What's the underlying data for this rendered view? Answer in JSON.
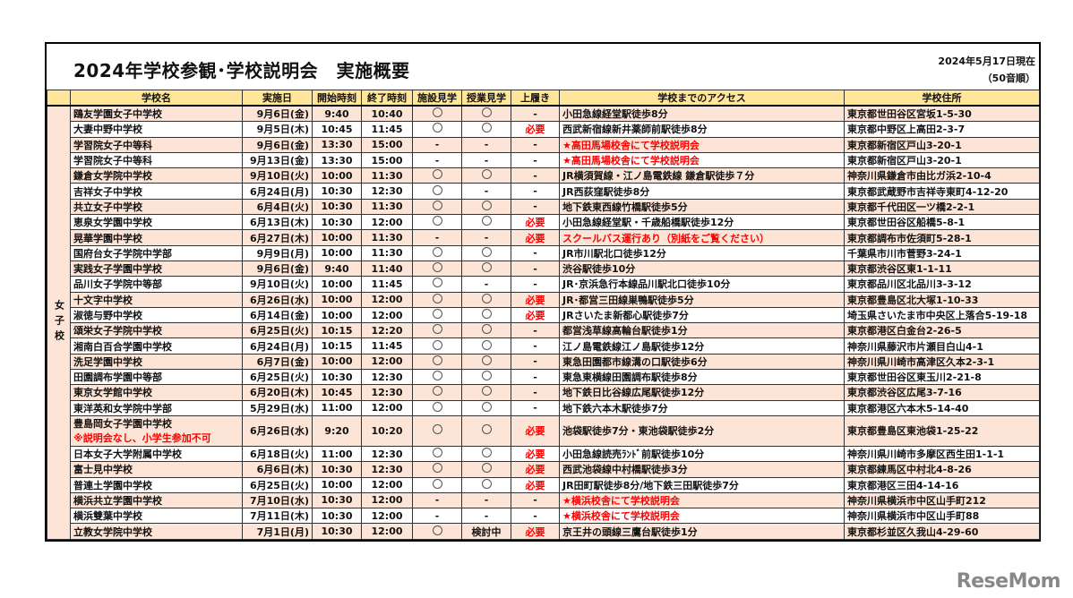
{
  "header": {
    "title": "2024年学校参観･学校説明会　実施概要",
    "as_of": "2024年5月17日現在",
    "order_note": "（50音順）"
  },
  "columns": [
    "学校名",
    "実施日",
    "開始時刻",
    "終了時刻",
    "施設見学",
    "授業見学",
    "上履き",
    "学校までのアクセス",
    "学校住所"
  ],
  "group_label": "女子校",
  "symbols": {
    "yes": "○",
    "no": "-"
  },
  "colors": {
    "header_bg": "#FFE699",
    "row_pink": "#FCE4D6",
    "alert_red": "#FF0000"
  },
  "rows": [
    {
      "name": "鴎友学園女子中学校",
      "date": "9月6日(金)",
      "start": "9:40",
      "end": "10:40",
      "facility": "○",
      "class": "○",
      "shoes": "-",
      "access": "小田急線経堂駅徒歩8分",
      "address": "東京都世田谷区宮坂1-5-30"
    },
    {
      "name": "大妻中野中学校",
      "date": "9月5日(木)",
      "start": "10:45",
      "end": "11:45",
      "facility": "○",
      "class": "○",
      "shoes": "必要",
      "access": "西武新宿線新井薬師前駅徒歩8分",
      "address": "東京都中野区上高田2-3-7"
    },
    {
      "name": "学習院女子中等科",
      "date": "9月6日(金)",
      "start": "13:30",
      "end": "15:00",
      "facility": "-",
      "class": "-",
      "shoes": "-",
      "access": "★高田馬場校舎にて学校説明会",
      "access_red": true,
      "address": "東京都新宿区戸山3-20-1"
    },
    {
      "name": "学習院女子中等科",
      "date": "9月13日(金)",
      "start": "13:30",
      "end": "15:00",
      "facility": "-",
      "class": "-",
      "shoes": "-",
      "access": "★高田馬場校舎にて学校説明会",
      "access_red": true,
      "address": "東京都新宿区戸山3-20-1"
    },
    {
      "name": "鎌倉女学院中学校",
      "date": "9月10日(火)",
      "start": "10:00",
      "end": "11:30",
      "facility": "○",
      "class": "○",
      "shoes": "-",
      "access": "JR横須賀線・江ノ島電鉄線 鎌倉駅徒歩７分",
      "address": "神奈川県鎌倉市由比ガ浜2-10-4"
    },
    {
      "name": "吉祥女子中学校",
      "date": "6月24日(月)",
      "start": "10:30",
      "end": "12:30",
      "facility": "○",
      "class": "-",
      "shoes": "-",
      "access": "JR西荻窪駅徒歩8分",
      "address": "東京都武蔵野市吉祥寺東町4-12-20"
    },
    {
      "name": "共立女子中学校",
      "date": "6月4日(火)",
      "start": "10:30",
      "end": "11:30",
      "facility": "○",
      "class": "○",
      "shoes": "-",
      "access": "地下鉄東西線竹橋駅徒歩5分",
      "address": "東京都千代田区一ツ橋2-2-1"
    },
    {
      "name": "恵泉女学園中学校",
      "date": "6月13日(木)",
      "start": "10:30",
      "end": "12:00",
      "facility": "○",
      "class": "○",
      "shoes": "必要",
      "access": "小田急線経堂駅・千歳船橋駅徒歩12分",
      "address": "東京都世田谷区船橋5-8-1"
    },
    {
      "name": "晃華学園中学校",
      "date": "6月27日(木)",
      "start": "10:00",
      "end": "11:30",
      "facility": "-",
      "class": "-",
      "shoes": "必要",
      "access": "スクールバス運行あり（別紙をご覧ください）",
      "access_red": true,
      "address": "東京都調布市佐須町5-28-1"
    },
    {
      "name": "国府台女子学院中学部",
      "date": "9月9日(月)",
      "start": "10:00",
      "end": "11:30",
      "facility": "○",
      "class": "○",
      "shoes": "-",
      "access": "JR市川駅北口徒歩12分",
      "address": "千葉県市川市菅野3-24-1"
    },
    {
      "name": "実践女子学園中学校",
      "date": "9月6日(金)",
      "start": "9:40",
      "end": "11:40",
      "facility": "○",
      "class": "○",
      "shoes": "-",
      "access": "渋谷駅徒歩10分",
      "address": "東京都渋谷区東1-1-11"
    },
    {
      "name": "品川女子学院中等部",
      "date": "9月10日(火)",
      "start": "10:00",
      "end": "11:45",
      "facility": "○",
      "class": "-",
      "shoes": "-",
      "access": "JR･京浜急行本線品川駅北口徒歩10分",
      "address": "東京都品川区北品川3-3-12"
    },
    {
      "name": "十文字中学校",
      "date": "6月26日(水)",
      "start": "10:00",
      "end": "12:00",
      "facility": "○",
      "class": "○",
      "shoes": "必要",
      "access": "JR･都営三田線巣鴨駅徒歩5分",
      "address": "東京都豊島区北大塚1-10-33"
    },
    {
      "name": "淑徳与野中学校",
      "date": "6月14日(金)",
      "start": "10:00",
      "end": "12:00",
      "facility": "○",
      "class": "○",
      "shoes": "必要",
      "access": "JRさいたま新都心駅徒歩7分",
      "address": "埼玉県さいたま市中央区上落合5-19-18"
    },
    {
      "name": "頌栄女子学院中学校",
      "date": "6月25日(火)",
      "start": "10:15",
      "end": "12:20",
      "facility": "○",
      "class": "○",
      "shoes": "-",
      "access": "都営浅草線高輪台駅徒歩1分",
      "address": "東京都港区白金台2-26-5"
    },
    {
      "name": "湘南白百合学園中学校",
      "date": "6月24日(月)",
      "start": "10:15",
      "end": "11:45",
      "facility": "○",
      "class": "○",
      "shoes": "-",
      "access": "江ノ島電鉄線江ノ島駅徒歩12分",
      "address": "神奈川県藤沢市片瀬目白山4-1"
    },
    {
      "name": "洗足学園中学校",
      "date": "6月7日(金)",
      "start": "10:00",
      "end": "12:00",
      "facility": "○",
      "class": "○",
      "shoes": "-",
      "access": "東急田園都市線溝の口駅徒歩6分",
      "address": "神奈川県川崎市高津区久本2-3-1"
    },
    {
      "name": "田園調布学園中等部",
      "date": "6月25日(火)",
      "start": "10:30",
      "end": "12:30",
      "facility": "○",
      "class": "○",
      "shoes": "-",
      "access": "東急東横線田園調布駅徒歩8分",
      "address": "東京都世田谷区東玉川2-21-8"
    },
    {
      "name": "東京女学館中学校",
      "date": "6月20日(木)",
      "start": "10:45",
      "end": "12:30",
      "facility": "○",
      "class": "○",
      "shoes": "-",
      "access": "地下鉄日比谷線広尾駅徒歩12分",
      "address": "東京都渋谷区広尾3-7-16"
    },
    {
      "name": "東洋英和女学院中学部",
      "date": "5月29日(水)",
      "start": "11:00",
      "end": "12:00",
      "facility": "○",
      "class": "○",
      "shoes": "-",
      "access": "地下鉄六本木駅徒歩7分",
      "address": "東京都港区六本木5-14-40"
    },
    {
      "name": "豊島岡女子学園中学校",
      "note": "※説明会なし、小学生参加不可",
      "date": "6月26日(水)",
      "start": "9:20",
      "end": "10:20",
      "facility": "○",
      "class": "○",
      "shoes": "必要",
      "access": "池袋駅徒歩7分・東池袋駅徒歩2分",
      "address": "東京都豊島区東池袋1-25-22"
    },
    {
      "name": "日本女子大学附属中学校",
      "date": "6月18日(火)",
      "start": "11:00",
      "end": "12:30",
      "facility": "○",
      "class": "○",
      "shoes": "必要",
      "access": "小田急線読売ﾗﾝﾄﾞ前駅徒歩10分",
      "address": "神奈川県川崎市多摩区西生田1-1-1"
    },
    {
      "name": "富士見中学校",
      "date": "6月6日(木)",
      "start": "10:30",
      "end": "12:30",
      "facility": "○",
      "class": "○",
      "shoes": "必要",
      "access": "西武池袋線中村橋駅徒歩3分",
      "address": "東京都練馬区中村北4-8-26"
    },
    {
      "name": "普連土学園中学校",
      "date": "6月25日(火)",
      "start": "10:00",
      "end": "12:00",
      "facility": "○",
      "class": "○",
      "shoes": "必要",
      "access": "JR田町駅徒歩8分/地下鉄三田駅徒歩7分",
      "address": "東京都港区三田4-14-16"
    },
    {
      "name": "横浜共立学園中学校",
      "date": "7月10日(水)",
      "start": "10:30",
      "end": "12:00",
      "facility": "-",
      "class": "-",
      "shoes": "-",
      "access": "★横浜校舎にて学校説明会",
      "access_red": true,
      "address": "神奈川県横浜市中区山手町212"
    },
    {
      "name": "横浜雙葉中学校",
      "date": "7月11日(木)",
      "start": "10:30",
      "end": "12:00",
      "facility": "-",
      "class": "-",
      "shoes": "-",
      "access": "★横浜校舎にて学校説明会",
      "access_red": true,
      "address": "神奈川県横浜市中区山手町88"
    },
    {
      "name": "立教女学院中学校",
      "date": "7月1日(月)",
      "start": "10:30",
      "end": "12:00",
      "facility": "○",
      "class": "検討中",
      "shoes": "必要",
      "access": "京王井の頭線三鷹台駅徒歩1分",
      "address": "東京都杉並区久我山4-29-60"
    }
  ],
  "watermark": "ReseMom"
}
